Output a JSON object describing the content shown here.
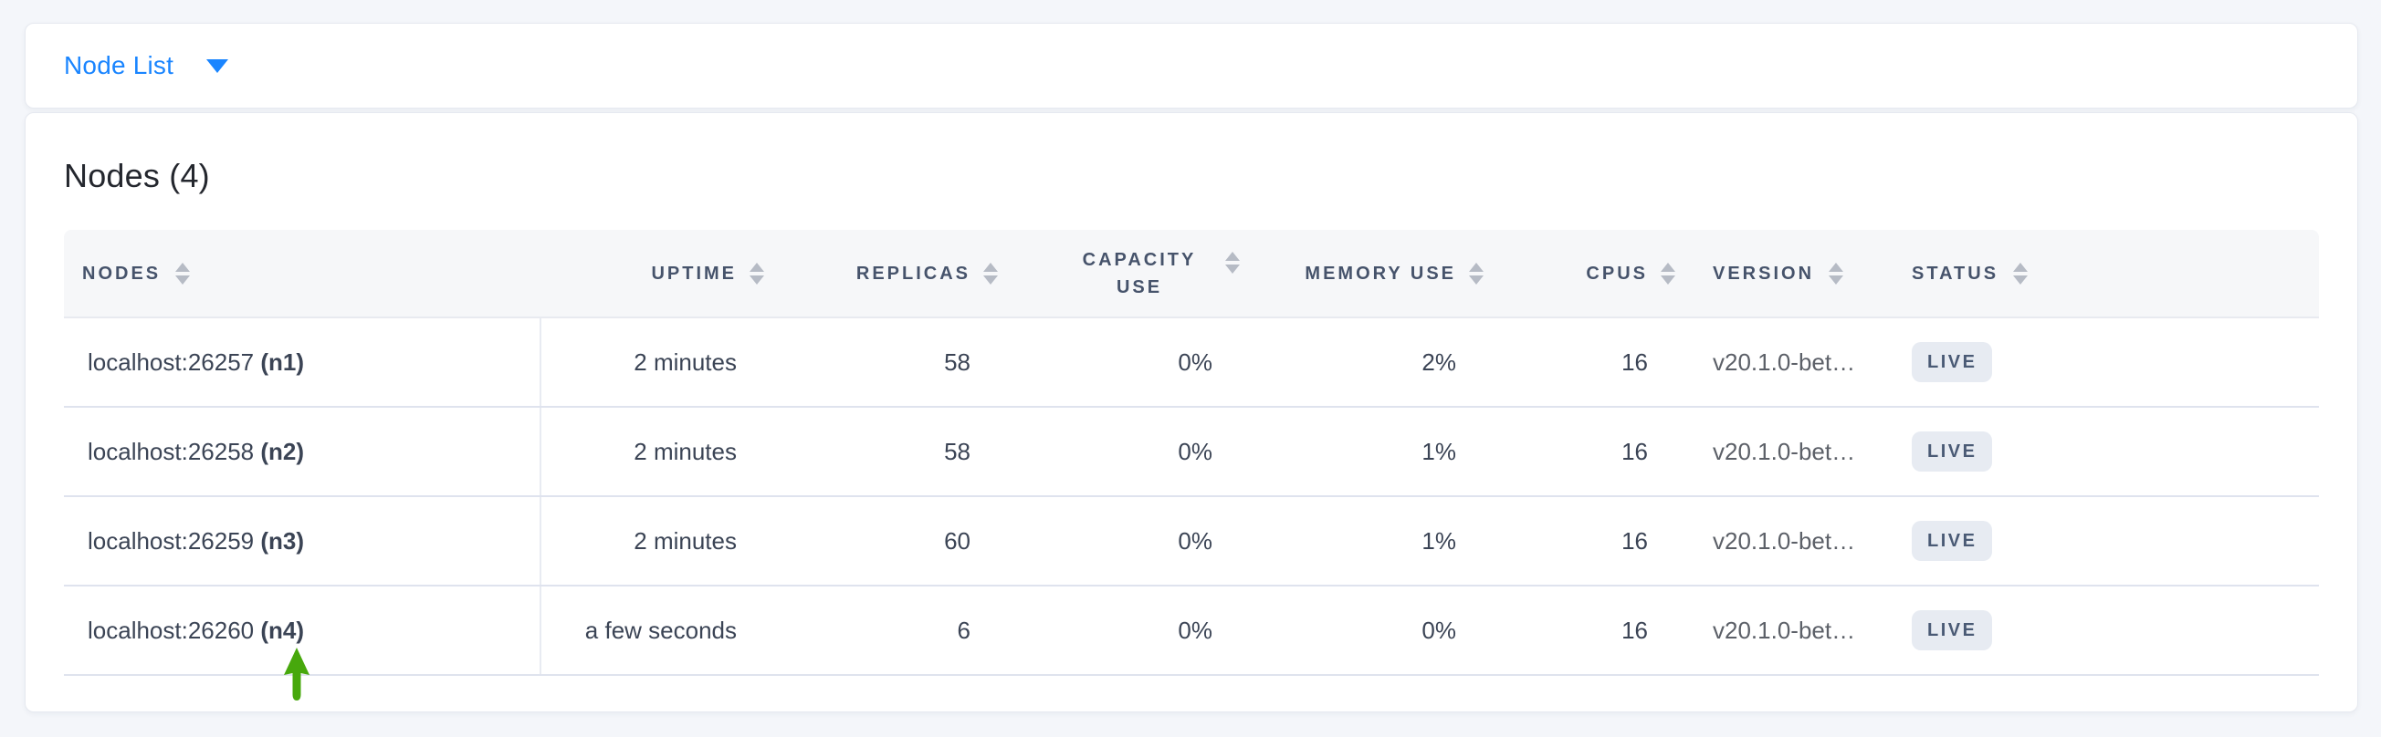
{
  "toolbar": {
    "view_label": "Node List",
    "caret_icon": "caret-down"
  },
  "panel": {
    "title": "Nodes (4)"
  },
  "table": {
    "columns": [
      {
        "key": "nodes",
        "label": "NODES",
        "align": "left",
        "wrap": false
      },
      {
        "key": "uptime",
        "label": "UPTIME",
        "align": "right",
        "wrap": false
      },
      {
        "key": "replicas",
        "label": "REPLICAS",
        "align": "right",
        "wrap": false
      },
      {
        "key": "capacity_use",
        "label": "CAPACITY USE",
        "align": "right",
        "wrap": true
      },
      {
        "key": "memory_use",
        "label": "MEMORY USE",
        "align": "right",
        "wrap": false
      },
      {
        "key": "cpus",
        "label": "CPUS",
        "align": "right",
        "wrap": false
      },
      {
        "key": "version",
        "label": "VERSION",
        "align": "left",
        "wrap": false
      },
      {
        "key": "status",
        "label": "STATUS",
        "align": "left",
        "wrap": false
      }
    ],
    "rows": [
      {
        "address": "localhost:26257",
        "id": "(n1)",
        "uptime": "2 minutes",
        "replicas": "58",
        "capacity_use": "0%",
        "memory_use": "2%",
        "cpus": "16",
        "version": "v20.1.0-bet…",
        "status": "LIVE"
      },
      {
        "address": "localhost:26258",
        "id": "(n2)",
        "uptime": "2 minutes",
        "replicas": "58",
        "capacity_use": "0%",
        "memory_use": "1%",
        "cpus": "16",
        "version": "v20.1.0-bet…",
        "status": "LIVE"
      },
      {
        "address": "localhost:26259",
        "id": "(n3)",
        "uptime": "2 minutes",
        "replicas": "60",
        "capacity_use": "0%",
        "memory_use": "1%",
        "cpus": "16",
        "version": "v20.1.0-bet…",
        "status": "LIVE"
      },
      {
        "address": "localhost:26260",
        "id": "(n4)",
        "uptime": "a few seconds",
        "replicas": "6",
        "capacity_use": "0%",
        "memory_use": "0%",
        "cpus": "16",
        "version": "v20.1.0-bet…",
        "status": "LIVE"
      }
    ],
    "annotation": {
      "icon": "up-arrow",
      "color": "#47a80c",
      "points_to": "localhost:26260 (n4)"
    }
  },
  "colors": {
    "link_blue": "#1a85ff",
    "badge_bg": "#e7ebf2",
    "badge_text": "#4a5a75",
    "arrow_green": "#47a80c",
    "header_text": "#46536b",
    "row_text": "#3b4455",
    "page_bg": "#f4f6fa"
  }
}
